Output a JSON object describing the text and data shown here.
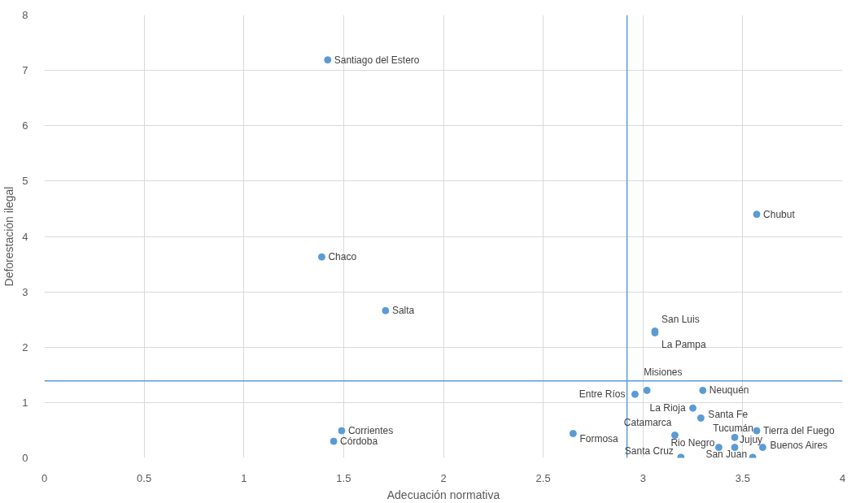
{
  "chart_data": {
    "type": "scatter",
    "xlabel": "Adecuación normativa",
    "ylabel": "Deforestación ilegal",
    "xlim": [
      0,
      4
    ],
    "xticks": [
      0,
      0.5,
      1,
      1.5,
      2,
      2.5,
      3,
      3.5,
      4
    ],
    "ylim": [
      0,
      8
    ],
    "yticks": [
      0,
      1,
      2,
      3,
      4,
      5,
      6,
      7,
      8
    ],
    "grid": true,
    "marker": "circle",
    "ref_lines": [
      {
        "axis": "x",
        "value": 2.92,
        "color": "#5b9bd5"
      },
      {
        "axis": "y",
        "value": 1.39,
        "color": "#5b9bd5"
      }
    ],
    "series": [
      {
        "name": "Santiago del Estero",
        "color": "#5b9bd5",
        "x": [
          1.42
        ],
        "values": [
          7.19
        ]
      },
      {
        "name": "Chaco",
        "color": "#5b9bd5",
        "x": [
          1.39
        ],
        "values": [
          3.63
        ]
      },
      {
        "name": "Salta",
        "color": "#5b9bd5",
        "x": [
          1.71
        ],
        "values": [
          2.66
        ]
      },
      {
        "name": "Corrientes",
        "color": "#5b9bd5",
        "x": [
          1.49
        ],
        "values": [
          0.49
        ]
      },
      {
        "name": "Córdoba",
        "color": "#5b9bd5",
        "x": [
          1.45
        ],
        "values": [
          0.3
        ]
      },
      {
        "name": "Formosa",
        "color": "#5b9bd5",
        "x": [
          2.65
        ],
        "values": [
          0.44
        ]
      },
      {
        "name": "Chubut",
        "color": "#5b9bd5",
        "x": [
          3.57
        ],
        "values": [
          4.4
        ]
      },
      {
        "name": "San Luis",
        "color": "#5b9bd5",
        "x": [
          3.06
        ],
        "values": [
          2.29
        ]
      },
      {
        "name": "La Pampa",
        "color": "#5b9bd5",
        "x": [
          3.06
        ],
        "values": [
          2.26
        ]
      },
      {
        "name": "Misiones",
        "color": "#5b9bd5",
        "x": [
          3.02
        ],
        "values": [
          1.22
        ]
      },
      {
        "name": "Entre Ríos",
        "color": "#5b9bd5",
        "x": [
          2.96
        ],
        "values": [
          1.15
        ]
      },
      {
        "name": "Neuquén",
        "color": "#5b9bd5",
        "x": [
          3.3
        ],
        "values": [
          1.22
        ]
      },
      {
        "name": "La Rioja",
        "color": "#5b9bd5",
        "x": [
          3.25
        ],
        "values": [
          0.9
        ]
      },
      {
        "name": "Santa Fe",
        "color": "#5b9bd5",
        "x": [
          3.29
        ],
        "values": [
          0.72
        ]
      },
      {
        "name": "Catamarca",
        "color": "#5b9bd5",
        "x": [
          3.16
        ],
        "values": [
          0.41
        ]
      },
      {
        "name": "Tierra del Fuego",
        "color": "#5b9bd5",
        "x": [
          3.57
        ],
        "values": [
          0.49
        ]
      },
      {
        "name": "Tucumán",
        "color": "#5b9bd5",
        "x": [
          3.46
        ],
        "values": [
          0.37
        ]
      },
      {
        "name": "Jujuy",
        "color": "#5b9bd5",
        "x": [
          3.46
        ],
        "values": [
          0.19
        ]
      },
      {
        "name": "Buenos Aires",
        "color": "#5b9bd5",
        "x": [
          3.6
        ],
        "values": [
          0.19
        ]
      },
      {
        "name": "Rio Negro",
        "color": "#5b9bd5",
        "x": [
          3.38
        ],
        "values": [
          0.19
        ]
      },
      {
        "name": "Santa Cruz",
        "color": "#5b9bd5",
        "x": [
          3.19
        ],
        "values": [
          0.01
        ]
      },
      {
        "name": "San Juan",
        "color": "#5b9bd5",
        "x": [
          3.55
        ],
        "values": [
          0.01
        ]
      }
    ]
  }
}
